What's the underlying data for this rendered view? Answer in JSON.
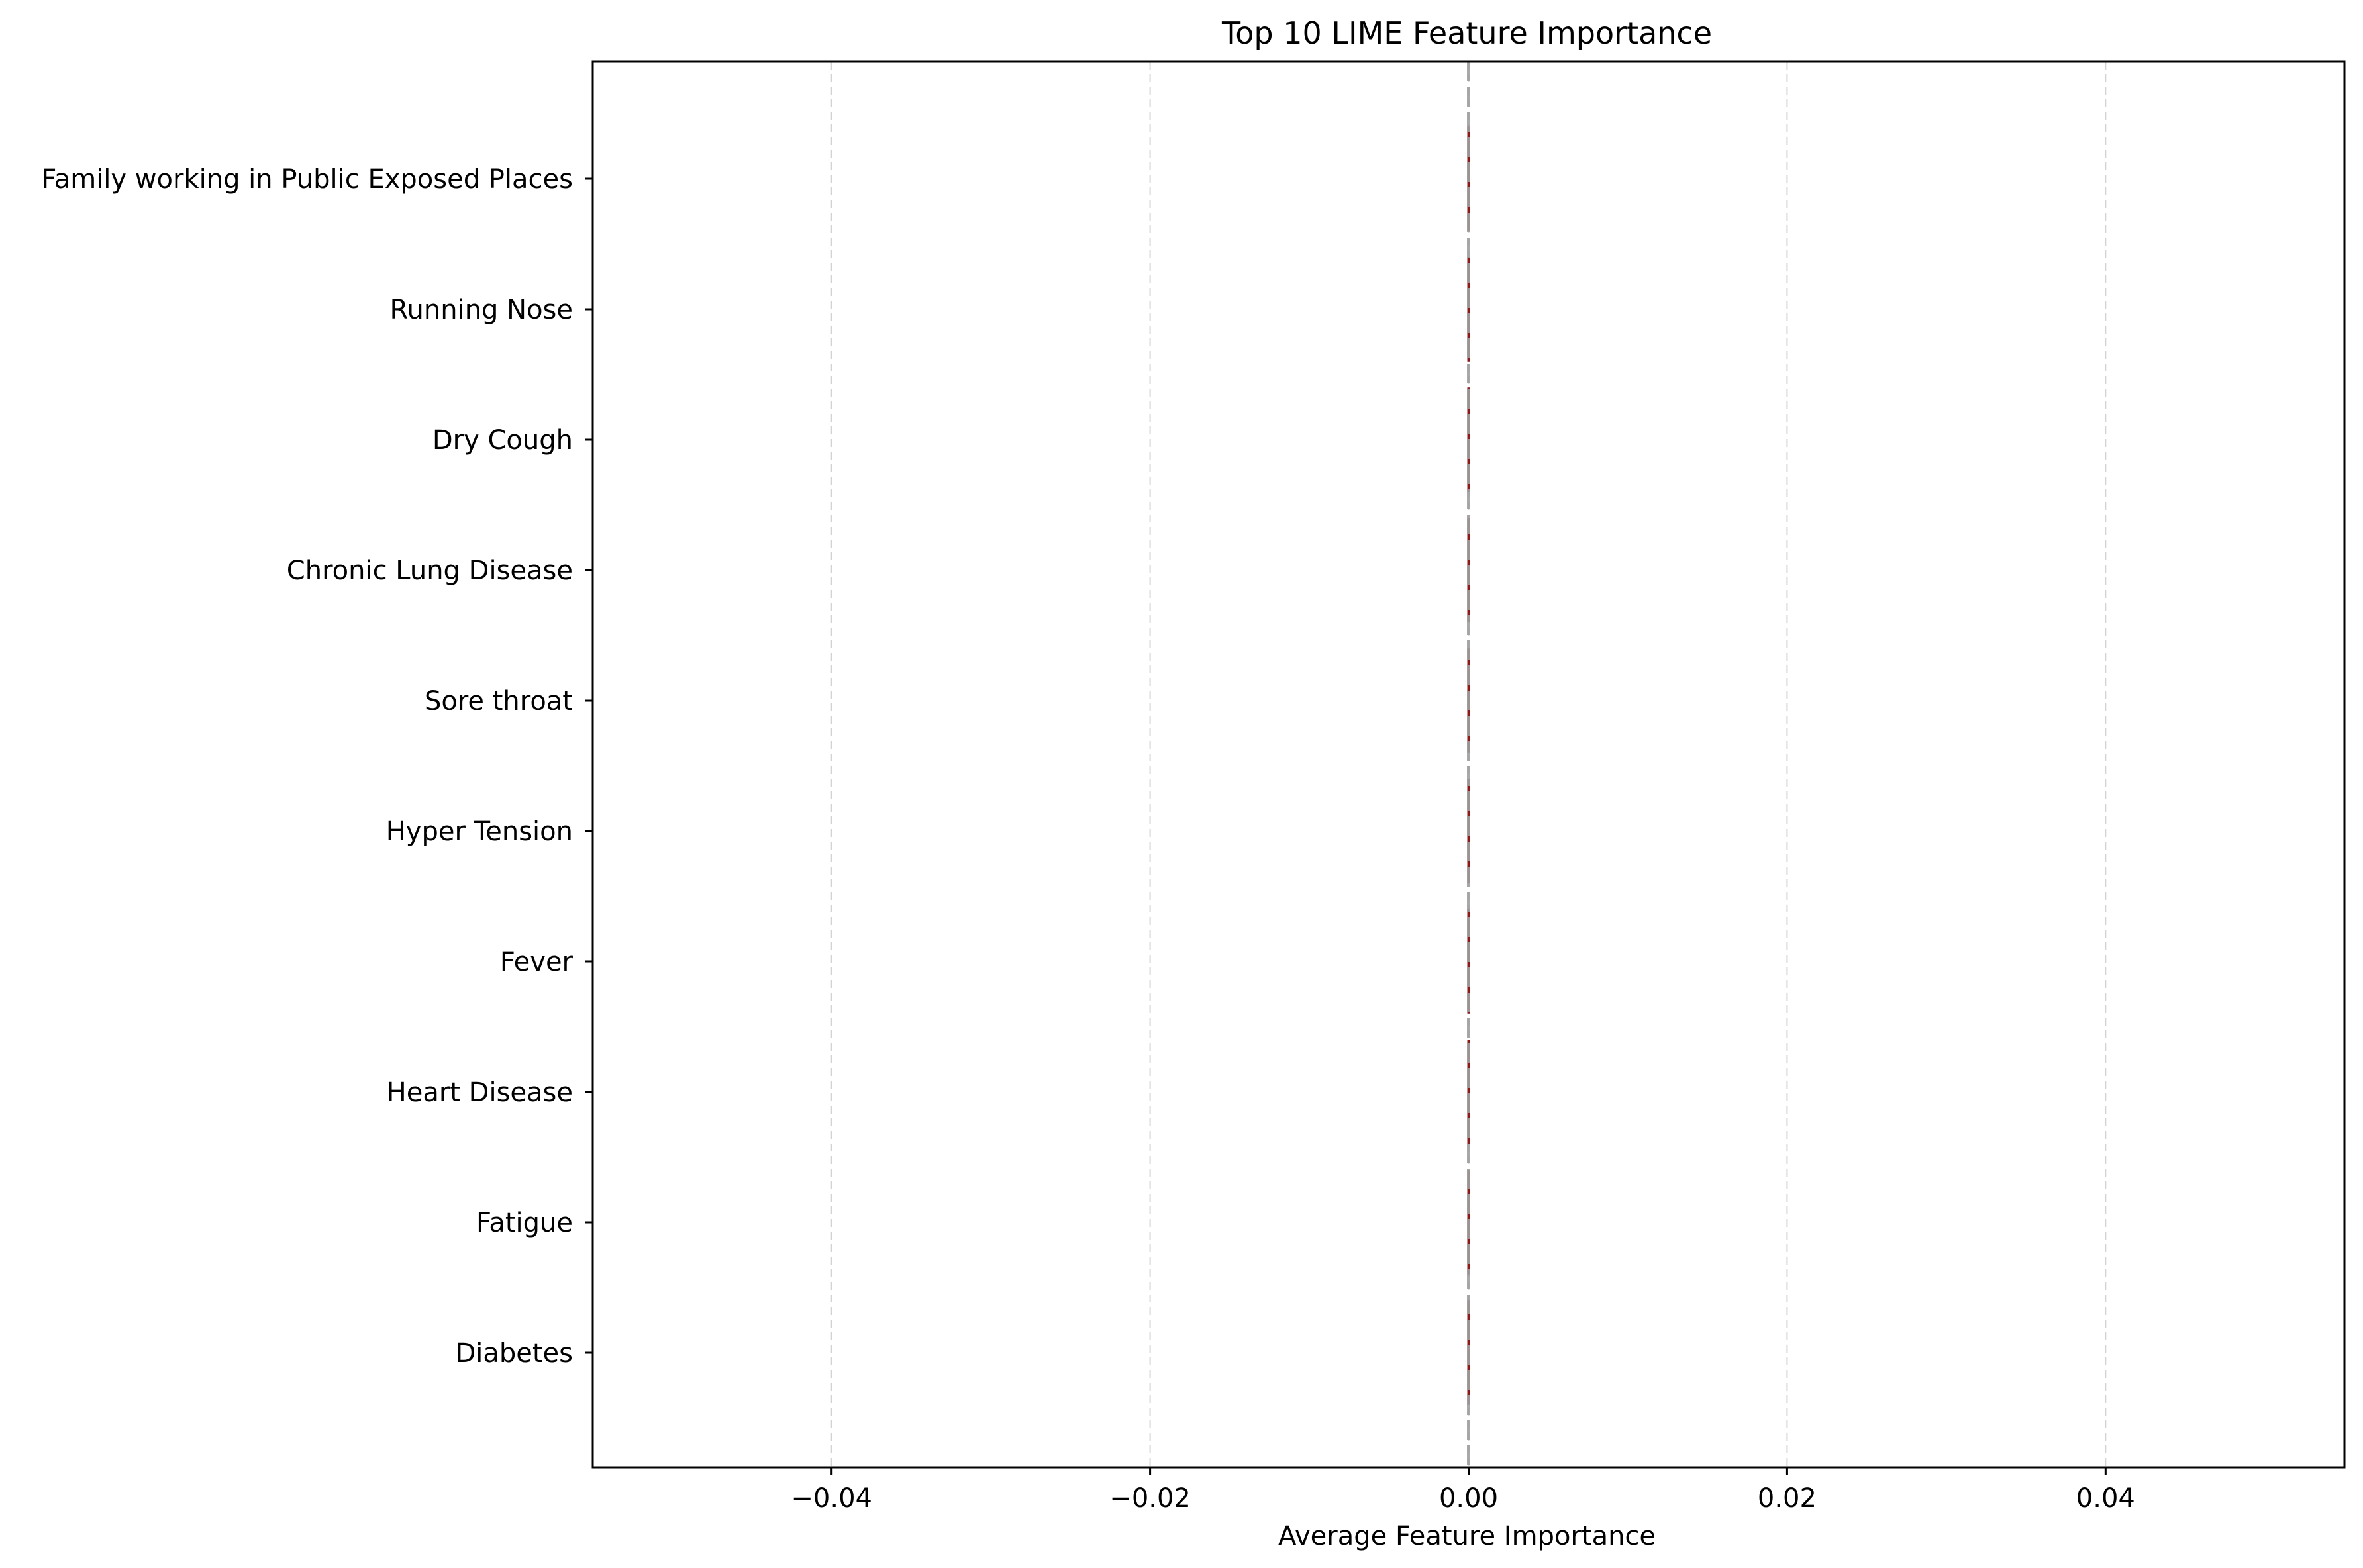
{
  "chart_data": {
    "type": "bar",
    "orientation": "horizontal",
    "title": "Top 10 LIME Feature Importance",
    "xlabel": "Average Feature Importance",
    "ylabel": "",
    "categories": [
      "Family working in Public Exposed Places",
      "Running Nose",
      "Dry Cough",
      "Chronic Lung Disease",
      "Sore throat",
      "Hyper Tension",
      "Fever",
      "Heart Disease",
      "Fatigue ",
      "Diabetes"
    ],
    "values": [
      0,
      0,
      0,
      0,
      0,
      0,
      0,
      0,
      0,
      0
    ],
    "xlim": [
      -0.055,
      0.055
    ],
    "xticks": [
      -0.04,
      -0.02,
      0.0,
      0.02,
      0.04
    ],
    "xtick_labels": [
      "−0.04",
      "−0.02",
      "0.00",
      "0.02",
      "0.04"
    ],
    "grid": "x-dashed",
    "reference_line_x": 0,
    "colors": {
      "bar": "#8b1a1a",
      "grid": "#d3d3d3",
      "reference_line": "#a0a0a0",
      "axes": "#000000"
    }
  }
}
